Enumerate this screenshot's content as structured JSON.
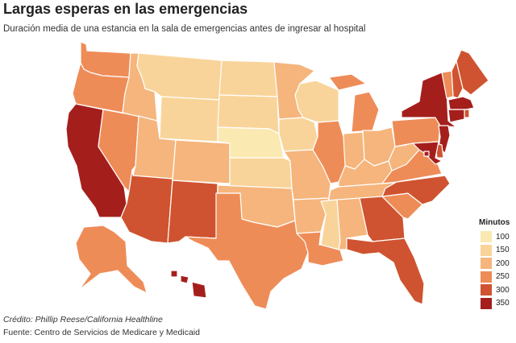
{
  "title": "Largas esperas en las emergencias",
  "subtitle": "Duración media de una estancia en la sala de emergencias antes de ingresar al hospital",
  "legend": {
    "title": "Minutos",
    "items": [
      {
        "label": "100",
        "color": "#fbe9b2"
      },
      {
        "label": "150",
        "color": "#f9d49a"
      },
      {
        "label": "200",
        "color": "#f5b57c"
      },
      {
        "label": "250",
        "color": "#ee8c58"
      },
      {
        "label": "300",
        "color": "#cf5330"
      },
      {
        "label": "350",
        "color": "#a41f1c"
      }
    ]
  },
  "credit": "Crédito: Phillip Reese/California Healthline",
  "source": "Fuente: Centro de Servicios de Medicare y Medicaid",
  "map_data": {
    "type": "choropleth",
    "region": "United States",
    "value_label": "Minutos",
    "scale": [
      100,
      150,
      200,
      250,
      300,
      350
    ],
    "colors": [
      "#fbe9b2",
      "#f9d49a",
      "#f5b57c",
      "#ee8c58",
      "#cf5330",
      "#a41f1c"
    ],
    "states": {
      "WA": 250,
      "OR": 250,
      "CA": 350,
      "NV": 250,
      "ID": 200,
      "MT": 150,
      "WY": 150,
      "UT": 200,
      "AZ": 300,
      "CO": 200,
      "NM": 300,
      "ND": 150,
      "SD": 150,
      "NE": 100,
      "KS": 150,
      "OK": 200,
      "TX": 250,
      "MN": 200,
      "IA": 150,
      "MO": 200,
      "AR": 200,
      "LA": 250,
      "WI": 150,
      "IL": 250,
      "MI": 250,
      "IN": 200,
      "OH": 200,
      "KY": 200,
      "TN": 200,
      "MS": 150,
      "AL": 200,
      "GA": 300,
      "FL": 300,
      "SC": 250,
      "NC": 300,
      "VA": 250,
      "WV": 200,
      "PA": 250,
      "NY": 350,
      "ME": 300,
      "NH": 300,
      "VT": 250,
      "MA": 350,
      "RI": 300,
      "CT": 350,
      "NJ": 350,
      "DE": 300,
      "MD": 350,
      "DC": 350,
      "AK": 250,
      "HI": 350
    }
  }
}
